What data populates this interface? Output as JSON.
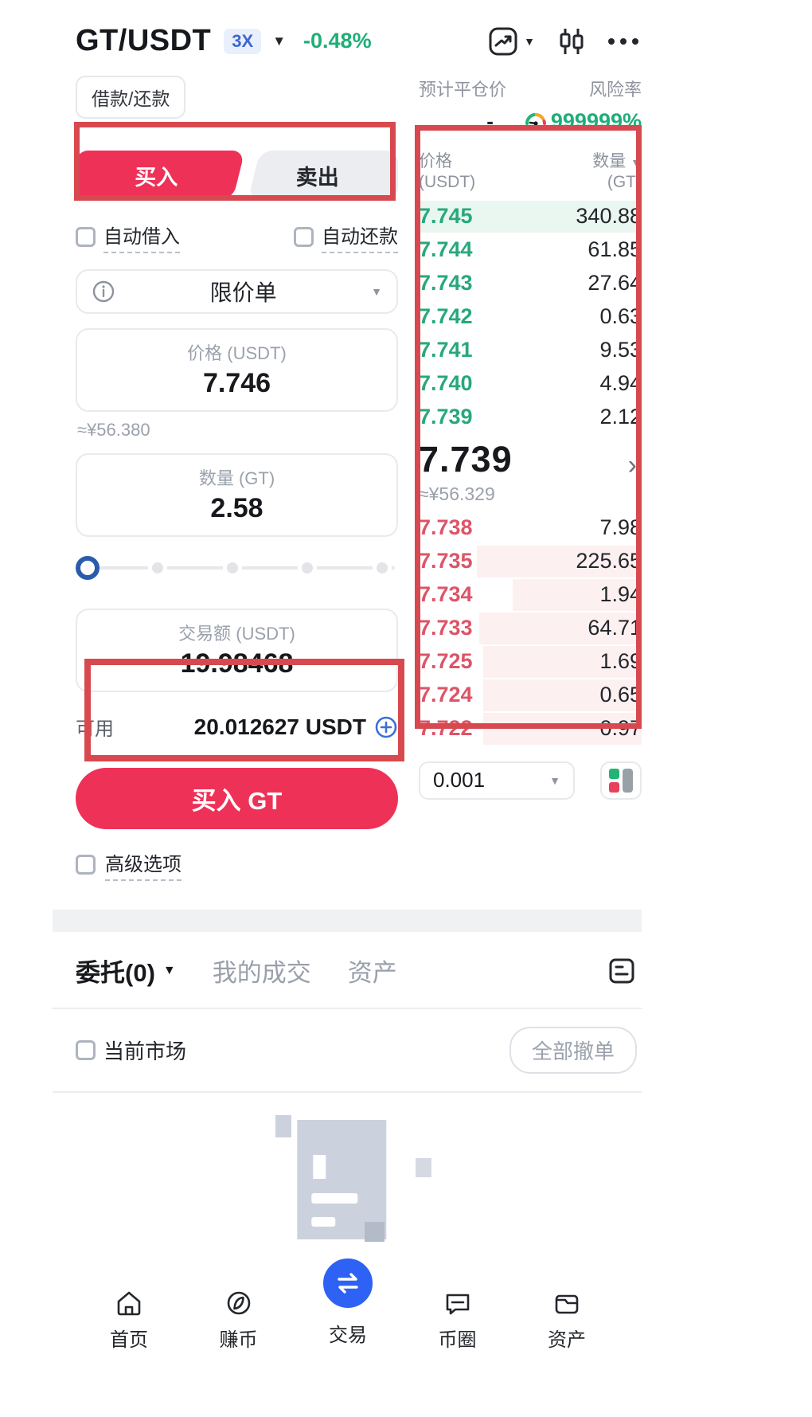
{
  "header": {
    "pair": "GT/USDT",
    "leverage": "3X",
    "change": "-0.48%"
  },
  "margin_bar": {
    "borrow_repay": "借款/还款",
    "est_liq_label": "预计平仓价",
    "est_liq_value": "-",
    "risk_label": "风险率",
    "risk_value": "999999%"
  },
  "form": {
    "buy_tab": "买入",
    "sell_tab": "卖出",
    "auto_borrow": "自动借入",
    "auto_repay": "自动还款",
    "order_type": "限价单",
    "price_label": "价格 (USDT)",
    "price_value": "7.746",
    "price_fiat": "≈¥56.380",
    "amount_label": "数量 (GT)",
    "amount_value": "2.58",
    "total_label": "交易额 (USDT)",
    "total_value": "19.98468",
    "available_label": "可用",
    "available_value": "20.012627 USDT",
    "submit_label": "买入 GT",
    "advanced_label": "高级选项"
  },
  "orderbook": {
    "price_header": "价格",
    "price_unit": "(USDT)",
    "amount_header": "数量",
    "amount_unit": "(GT)",
    "asks": [
      {
        "price": "7.745",
        "amount": "340.88",
        "depth": 100
      },
      {
        "price": "7.744",
        "amount": "61.85",
        "depth": 0
      },
      {
        "price": "7.743",
        "amount": "27.64",
        "depth": 0
      },
      {
        "price": "7.742",
        "amount": "0.63",
        "depth": 0
      },
      {
        "price": "7.741",
        "amount": "9.53",
        "depth": 0
      },
      {
        "price": "7.740",
        "amount": "4.94",
        "depth": 0
      },
      {
        "price": "7.739",
        "amount": "2.12",
        "depth": 0
      }
    ],
    "last_price": "7.739",
    "last_fiat": "≈¥56.329",
    "bids": [
      {
        "price": "7.738",
        "amount": "7.98",
        "depth": 0
      },
      {
        "price": "7.735",
        "amount": "225.65",
        "depth": 74
      },
      {
        "price": "7.734",
        "amount": "1.94",
        "depth": 58
      },
      {
        "price": "7.733",
        "amount": "64.71",
        "depth": 73
      },
      {
        "price": "7.725",
        "amount": "1.69",
        "depth": 71
      },
      {
        "price": "7.724",
        "amount": "0.65",
        "depth": 71
      },
      {
        "price": "7.722",
        "amount": "0.97",
        "depth": 71
      }
    ],
    "tick": "0.001"
  },
  "panel": {
    "orders_tab": "委托(0)",
    "my_trades_tab": "我的成交",
    "assets_tab": "资产",
    "market_filter": "当前市场",
    "cancel_all": "全部撤单"
  },
  "nav": {
    "items": [
      {
        "label": "首页"
      },
      {
        "label": "赚币"
      },
      {
        "label": "交易"
      },
      {
        "label": "币圈"
      },
      {
        "label": "资产"
      }
    ]
  },
  "colors": {
    "accent_red": "#ee3157",
    "ask_green": "#27a87c",
    "bid_red": "#dd5468",
    "change_green": "#1fae79",
    "nav_blue": "#2e62f4",
    "annotation_red": "#d7494f"
  }
}
